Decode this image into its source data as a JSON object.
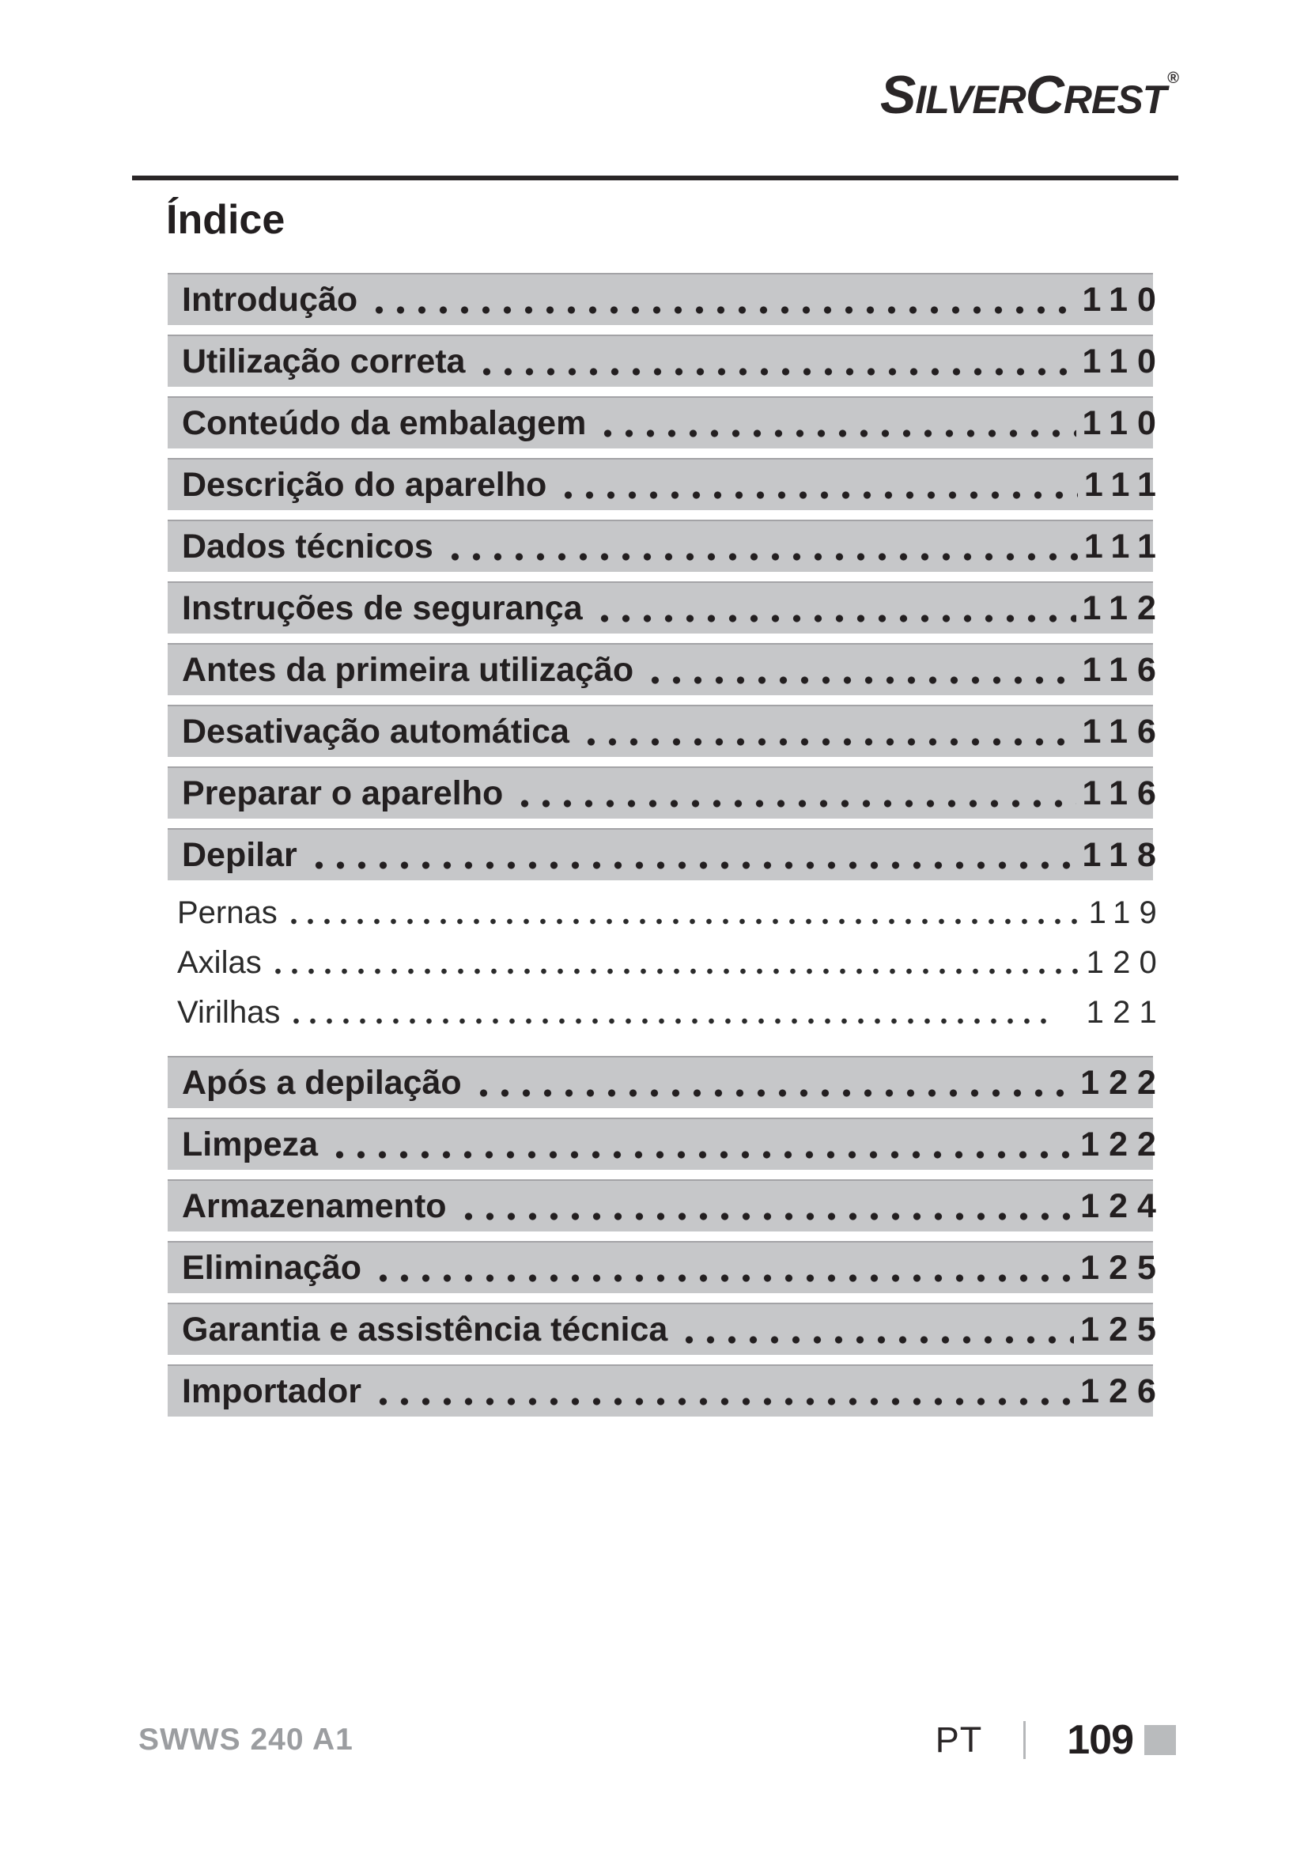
{
  "brand": {
    "part1": "S",
    "part2": "ILVER",
    "part3": "C",
    "part4": "REST",
    "registered": "®"
  },
  "page_title": "Índice",
  "toc": {
    "items": [
      {
        "label": "Introdução",
        "page": "110",
        "level": "main"
      },
      {
        "label": "Utilização correta",
        "page": "110",
        "level": "main"
      },
      {
        "label": "Conteúdo da embalagem",
        "page": "110",
        "level": "main"
      },
      {
        "label": "Descrição do aparelho",
        "page": "111",
        "level": "main"
      },
      {
        "label": "Dados técnicos",
        "page": "111",
        "level": "main"
      },
      {
        "label": "Instruções de segurança",
        "page": "112",
        "level": "main"
      },
      {
        "label": "Antes da primeira utilização",
        "page": "116",
        "level": "main"
      },
      {
        "label": "Desativação automática",
        "page": "116",
        "level": "main"
      },
      {
        "label": "Preparar o aparelho",
        "page": "116",
        "level": "main"
      },
      {
        "label": "Depilar",
        "page": "118",
        "level": "main"
      },
      {
        "label": "Pernas",
        "page": "119",
        "level": "sub"
      },
      {
        "label": "Axilas",
        "page": "120",
        "level": "sub"
      },
      {
        "label": "Virilhas",
        "page": "121",
        "level": "sub",
        "space_before_page": true
      },
      {
        "label": "Após a depilação",
        "page": "122",
        "level": "main"
      },
      {
        "label": "Limpeza",
        "page": "122",
        "level": "main"
      },
      {
        "label": "Armazenamento",
        "page": "124",
        "level": "main"
      },
      {
        "label": "Eliminação",
        "page": "125",
        "level": "main"
      },
      {
        "label": "Garantia e assistência técnica",
        "page": "125",
        "level": "main"
      },
      {
        "label": "Importador",
        "page": "126",
        "level": "main"
      }
    ]
  },
  "footer": {
    "model": "SWWS 240 A1",
    "language": "PT",
    "page_number": "109"
  },
  "colors": {
    "row_highlight_gray": "#c6c7c9",
    "text_black": "#231f20",
    "footer_model_gray": "#9b9da0",
    "footer_divider_gray": "#b5b7b9"
  }
}
